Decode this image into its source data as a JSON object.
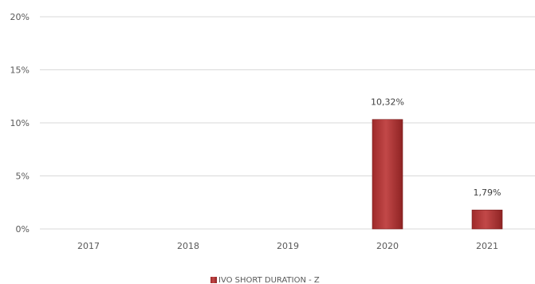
{
  "chart_data": {
    "type": "bar",
    "categories": [
      "2017",
      "2018",
      "2019",
      "2020",
      "2021"
    ],
    "series": [
      {
        "name": "IVO SHORT DURATION - Z",
        "values": [
          null,
          null,
          null,
          10.32,
          1.79
        ],
        "labels": [
          "",
          "",
          "",
          "10,32%",
          "1,79%"
        ],
        "color": "#b83a3a"
      }
    ],
    "yticks": [
      0,
      5,
      10,
      15,
      20
    ],
    "ytick_labels": [
      "0%",
      "5%",
      "10%",
      "15%",
      "20%"
    ],
    "ylim": [
      0,
      20
    ],
    "grid": true,
    "legend": "bottom"
  }
}
